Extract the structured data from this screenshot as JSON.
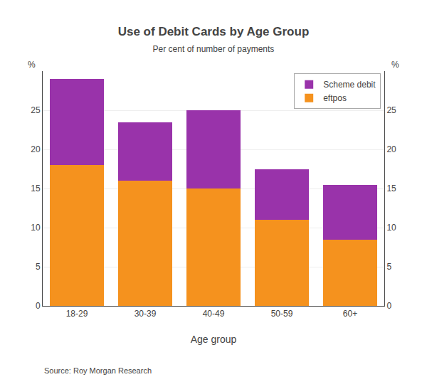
{
  "chart_data": {
    "type": "bar",
    "stacked": true,
    "title": "Use of Debit Cards by Age Group",
    "subtitle": "Per cent of number of payments",
    "xlabel": "Age group",
    "ylabel": "%",
    "y2label": "%",
    "source": "Source: Roy Morgan Research",
    "categories": [
      "18-29",
      "30-39",
      "40-49",
      "50-59",
      "60+"
    ],
    "series": [
      {
        "name": "eftpos",
        "color": "#F5921E",
        "values": [
          18.0,
          16.0,
          15.0,
          11.0,
          8.5
        ]
      },
      {
        "name": "Scheme debit",
        "color": "#9933AA",
        "values": [
          11.0,
          7.5,
          10.0,
          6.5,
          7.0
        ]
      }
    ],
    "ylim": [
      0,
      30
    ],
    "yticks": [
      0,
      5,
      10,
      15,
      20,
      25
    ],
    "y2lim": [
      0,
      30
    ],
    "y2ticks": [
      0,
      5,
      10,
      15,
      20,
      25
    ],
    "grid": true,
    "legend": "upper right"
  }
}
